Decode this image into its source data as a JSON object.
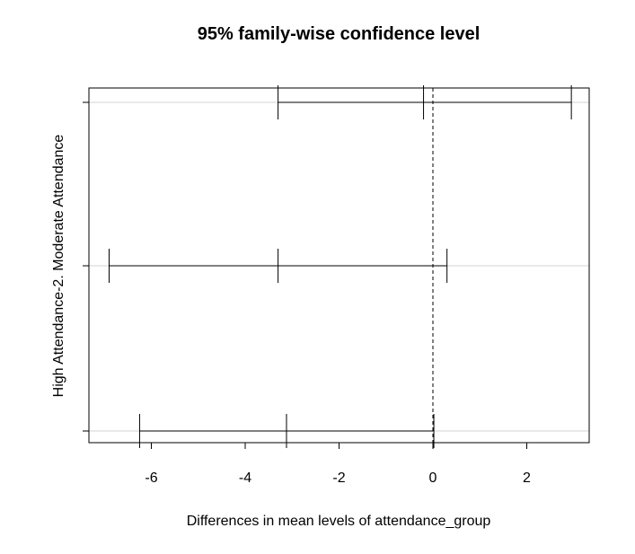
{
  "chart_data": {
    "type": "interval",
    "title": "95% family-wise confidence level",
    "xlabel": "Differences in mean levels of attendance_group",
    "ylabel": "High Attendance-2. Moderate Attendance",
    "xlim": [
      -7.3,
      3.4
    ],
    "x_ticks": [
      -6,
      -4,
      -2,
      0,
      2
    ],
    "x_tick_labels": [
      "-6",
      "-4",
      "-2",
      "0",
      "2"
    ],
    "reference_line": 0,
    "grid": "horizontal at each comparison",
    "intervals": [
      {
        "label": "",
        "lwr": -6.25,
        "diff": -3.12,
        "upr": 0.02
      },
      {
        "label": "",
        "lwr": -6.9,
        "diff": -3.3,
        "upr": 0.3
      },
      {
        "label": "",
        "lwr": -3.3,
        "diff": -0.2,
        "upr": 2.95
      }
    ]
  },
  "text_values": {
    "title": "95% family-wise confidence level",
    "xlabel": "Differences in mean levels of attendance_group",
    "ylabel": "High Attendance-2. Moderate Attendance"
  }
}
